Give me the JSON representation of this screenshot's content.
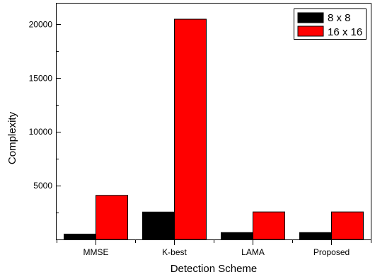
{
  "chart_data": {
    "type": "bar",
    "xlabel": "Detection Scheme",
    "ylabel": "Complexity",
    "ylim": [
      0,
      22000
    ],
    "yticks": [
      5000,
      10000,
      15000,
      20000
    ],
    "categories": [
      "MMSE",
      "K-best",
      "LAMA",
      "Proposed"
    ],
    "series": [
      {
        "name": "8 x 8",
        "color": "#000000",
        "values": [
          500,
          2550,
          640,
          640
        ]
      },
      {
        "name": "16 x 16",
        "color": "#ff0000",
        "values": [
          4100,
          20480,
          2560,
          2560
        ]
      }
    ],
    "legend": "top-right",
    "grid": false
  }
}
